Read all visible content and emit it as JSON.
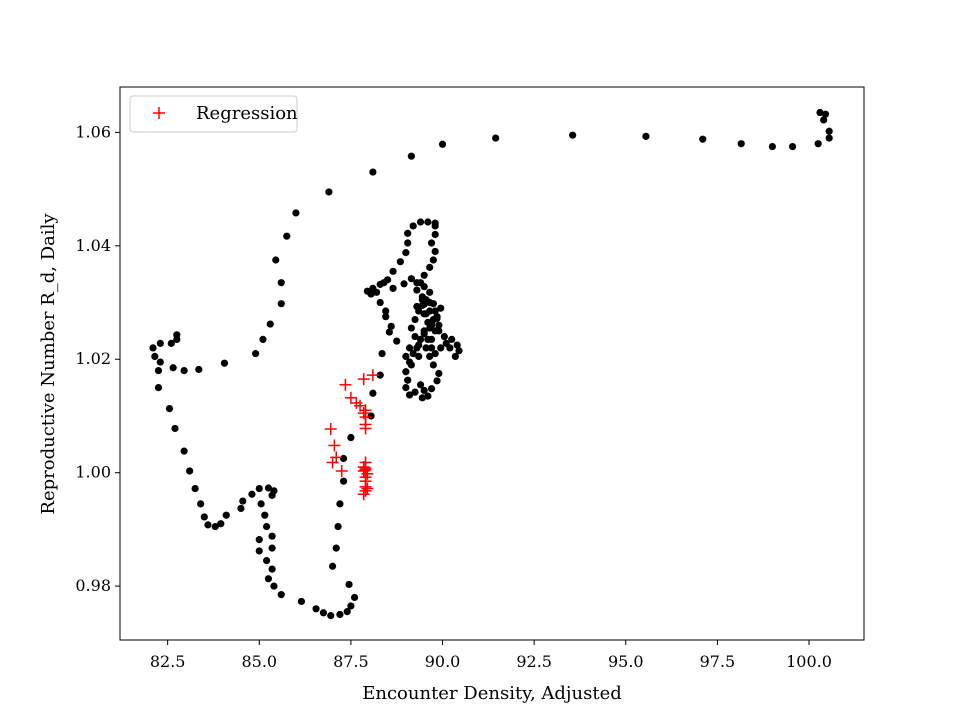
{
  "chart_data": {
    "type": "scatter",
    "xlabel": "Encounter Density, Adjusted",
    "ylabel": "Reproductive Number R_d, Daily",
    "xlim": [
      81.2,
      101.5
    ],
    "ylim": [
      0.9705,
      1.068
    ],
    "xticks": [
      "82.5",
      "85.0",
      "87.5",
      "90.0",
      "92.5",
      "95.0",
      "97.5",
      "100.0"
    ],
    "yticks": [
      "0.98",
      "1.00",
      "1.02",
      "1.04",
      "1.06"
    ],
    "grid": false,
    "legend": {
      "position": "top-left",
      "entries": [
        "Regression"
      ]
    },
    "colors": {
      "observed": "#000000",
      "regression": "#ff0000"
    },
    "series": [
      {
        "marker": "dot",
        "color": "#000000",
        "points": [
          [
            100.3,
            1.0635
          ],
          [
            100.45,
            1.0632
          ],
          [
            100.4,
            1.0622
          ],
          [
            100.55,
            1.0602
          ],
          [
            100.55,
            1.059
          ],
          [
            100.25,
            1.058
          ],
          [
            99.55,
            1.0575
          ],
          [
            99.0,
            1.0575
          ],
          [
            98.15,
            1.058
          ],
          [
            97.1,
            1.0588
          ],
          [
            95.55,
            1.0593
          ],
          [
            93.55,
            1.0595
          ],
          [
            91.45,
            1.059
          ],
          [
            90.0,
            1.0579
          ],
          [
            89.15,
            1.0558
          ],
          [
            88.1,
            1.053
          ],
          [
            86.9,
            1.0495
          ],
          [
            86.0,
            1.0458
          ],
          [
            85.75,
            1.0417
          ],
          [
            85.45,
            1.0375
          ],
          [
            85.6,
            1.0335
          ],
          [
            85.6,
            1.0298
          ],
          [
            85.3,
            1.0262
          ],
          [
            85.1,
            1.0235
          ],
          [
            84.9,
            1.021
          ],
          [
            84.05,
            1.0193
          ],
          [
            83.35,
            1.0182
          ],
          [
            82.95,
            1.018
          ],
          [
            82.65,
            1.0185
          ],
          [
            82.6,
            1.0228
          ],
          [
            82.75,
            1.0243
          ],
          [
            82.75,
            1.0235
          ],
          [
            82.3,
            1.0228
          ],
          [
            82.1,
            1.022
          ],
          [
            82.15,
            1.0205
          ],
          [
            82.3,
            1.0195
          ],
          [
            82.25,
            1.018
          ],
          [
            82.25,
            1.015
          ],
          [
            82.55,
            1.0113
          ],
          [
            82.7,
            1.0078
          ],
          [
            82.95,
            1.0038
          ],
          [
            83.1,
            1.0003
          ],
          [
            83.25,
            0.9972
          ],
          [
            83.4,
            0.9945
          ],
          [
            83.5,
            0.9922
          ],
          [
            83.6,
            0.9908
          ],
          [
            83.8,
            0.9905
          ],
          [
            83.95,
            0.991
          ],
          [
            84.1,
            0.9925
          ],
          [
            84.5,
            0.9937
          ],
          [
            84.55,
            0.995
          ],
          [
            84.8,
            0.9962
          ],
          [
            85.0,
            0.9972
          ],
          [
            85.25,
            0.9973
          ],
          [
            85.4,
            0.9968
          ],
          [
            85.35,
            0.996
          ],
          [
            85.05,
            0.9945
          ],
          [
            85.15,
            0.9925
          ],
          [
            85.2,
            0.9905
          ],
          [
            85.35,
            0.9888
          ],
          [
            85.35,
            0.9867
          ],
          [
            85.0,
            0.9882
          ],
          [
            85.0,
            0.9862
          ],
          [
            85.2,
            0.9845
          ],
          [
            85.35,
            0.983
          ],
          [
            85.25,
            0.9813
          ],
          [
            85.4,
            0.98
          ],
          [
            85.6,
            0.9785
          ],
          [
            86.15,
            0.9773
          ],
          [
            86.55,
            0.976
          ],
          [
            86.75,
            0.9753
          ],
          [
            86.95,
            0.9748
          ],
          [
            87.2,
            0.975
          ],
          [
            87.4,
            0.9755
          ],
          [
            87.5,
            0.9765
          ],
          [
            87.6,
            0.978
          ],
          [
            87.45,
            0.9803
          ],
          [
            87.0,
            0.9835
          ],
          [
            87.1,
            0.9867
          ],
          [
            87.15,
            0.9905
          ],
          [
            87.2,
            0.9945
          ],
          [
            87.3,
            0.9985
          ],
          [
            87.3,
            1.0025
          ],
          [
            87.5,
            1.0062
          ],
          [
            88.05,
            1.01
          ],
          [
            88.1,
            1.014
          ],
          [
            88.3,
            1.0172
          ],
          [
            88.35,
            1.021
          ],
          [
            88.55,
            1.0248
          ],
          [
            88.45,
            1.0285
          ],
          [
            88.05,
            1.0315
          ],
          [
            87.95,
            1.032
          ],
          [
            88.1,
            1.0325
          ],
          [
            88.3,
            1.0332
          ],
          [
            88.5,
            1.034
          ],
          [
            88.65,
            1.0325
          ],
          [
            88.95,
            1.0333
          ],
          [
            89.15,
            1.0342
          ],
          [
            89.3,
            1.0335
          ],
          [
            89.5,
            1.0328
          ],
          [
            89.65,
            1.0318
          ],
          [
            89.45,
            1.0305
          ],
          [
            89.3,
            1.0293
          ],
          [
            89.5,
            1.028
          ],
          [
            89.6,
            1.0265
          ],
          [
            89.5,
            1.025
          ],
          [
            89.4,
            1.0235
          ],
          [
            89.3,
            1.022
          ],
          [
            89.35,
            1.0205
          ],
          [
            89.15,
            1.019
          ],
          [
            89.0,
            1.0178
          ],
          [
            89.05,
            1.0163
          ],
          [
            89.0,
            1.015
          ],
          [
            89.1,
            1.0137
          ],
          [
            89.25,
            1.0142
          ],
          [
            89.4,
            1.0155
          ],
          [
            89.5,
            1.0145
          ],
          [
            89.45,
            1.0132
          ],
          [
            89.6,
            1.0135
          ],
          [
            89.7,
            1.0148
          ],
          [
            89.85,
            1.0162
          ],
          [
            89.9,
            1.0175
          ],
          [
            89.75,
            1.019
          ],
          [
            89.65,
            1.0205
          ],
          [
            89.55,
            1.022
          ],
          [
            89.7,
            1.0235
          ],
          [
            89.8,
            1.025
          ],
          [
            89.7,
            1.0265
          ],
          [
            89.55,
            1.028
          ],
          [
            89.45,
            1.0295
          ],
          [
            89.55,
            1.0305
          ],
          [
            89.75,
            1.0298
          ],
          [
            89.95,
            1.029
          ],
          [
            89.85,
            1.0275
          ],
          [
            89.7,
            1.026
          ],
          [
            89.9,
            1.025
          ],
          [
            90.05,
            1.024
          ],
          [
            90.25,
            1.0235
          ],
          [
            90.4,
            1.0225
          ],
          [
            90.45,
            1.0215
          ],
          [
            90.35,
            1.0205
          ],
          [
            90.2,
            1.022
          ],
          [
            90.1,
            1.0228
          ],
          [
            89.95,
            1.022
          ],
          [
            89.8,
            1.021
          ],
          [
            89.7,
            1.022
          ],
          [
            89.6,
            1.0235
          ],
          [
            89.5,
            1.0245
          ],
          [
            89.65,
            1.0255
          ],
          [
            89.75,
            1.027
          ],
          [
            89.65,
            1.0285
          ],
          [
            89.5,
            1.0297
          ],
          [
            89.35,
            1.0285
          ],
          [
            89.25,
            1.027
          ],
          [
            89.15,
            1.0255
          ],
          [
            89.25,
            1.024
          ],
          [
            89.35,
            1.0225
          ],
          [
            89.2,
            1.021
          ],
          [
            89.1,
            1.0195
          ],
          [
            89.0,
            1.0205
          ],
          [
            89.1,
            1.022
          ],
          [
            88.75,
            1.0232
          ],
          [
            88.6,
            1.0258
          ],
          [
            88.45,
            1.0275
          ],
          [
            88.3,
            1.03
          ],
          [
            88.2,
            1.0318
          ],
          [
            88.4,
            1.0335
          ],
          [
            88.65,
            1.0355
          ],
          [
            88.85,
            1.0372
          ],
          [
            89.0,
            1.0388
          ],
          [
            89.05,
            1.0405
          ],
          [
            89.05,
            1.0422
          ],
          [
            89.2,
            1.0435
          ],
          [
            89.4,
            1.0442
          ],
          [
            89.6,
            1.0442
          ],
          [
            89.8,
            1.044
          ],
          [
            89.8,
            1.0435
          ],
          [
            89.8,
            1.042
          ],
          [
            89.7,
            1.0405
          ],
          [
            89.8,
            1.039
          ],
          [
            89.75,
            1.0375
          ],
          [
            89.65,
            1.0362
          ],
          [
            89.5,
            1.0348
          ],
          [
            89.4,
            1.0335
          ],
          [
            89.3,
            1.0322
          ],
          [
            89.45,
            1.031
          ],
          [
            89.65,
            1.03
          ],
          [
            89.8,
            1.0285
          ],
          [
            89.85,
            1.0272
          ],
          [
            89.9,
            1.026
          ]
        ]
      },
      {
        "name": "Regression",
        "marker": "plus",
        "color": "#ff0000",
        "points": [
          [
            86.95,
            1.0077
          ],
          [
            87.05,
            1.0048
          ],
          [
            87.1,
            1.0027
          ],
          [
            87.0,
            1.0018
          ],
          [
            87.25,
            1.0003
          ],
          [
            87.35,
            1.0155
          ],
          [
            87.5,
            1.0132
          ],
          [
            87.65,
            1.0123
          ],
          [
            87.75,
            1.0118
          ],
          [
            87.85,
            1.0165
          ],
          [
            88.1,
            1.0172
          ],
          [
            87.9,
            1.011
          ],
          [
            87.9,
            1.0098
          ],
          [
            87.9,
            1.0085
          ],
          [
            87.9,
            1.0078
          ],
          [
            87.85,
            1.0105
          ],
          [
            87.9,
            1.0018
          ],
          [
            87.9,
            1.0008
          ],
          [
            87.85,
            1.0003
          ],
          [
            87.95,
            0.9998
          ],
          [
            87.9,
            0.9985
          ],
          [
            87.9,
            0.9975
          ],
          [
            87.9,
            0.9968
          ],
          [
            87.85,
            0.9962
          ],
          [
            87.95,
            0.9972
          ],
          [
            87.9,
            0.9992
          ],
          [
            87.9,
            1.0005
          ],
          [
            87.85,
            1.001
          ]
        ]
      }
    ]
  }
}
